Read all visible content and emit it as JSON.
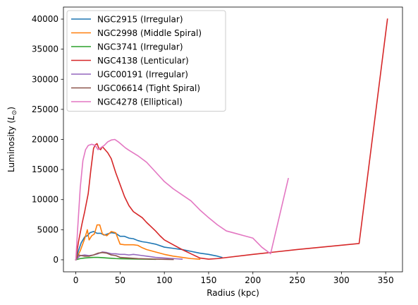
{
  "chart_data": {
    "type": "line",
    "title": "",
    "xlabel": "Radius (kpc)",
    "ylabel_main": "Luminosity (",
    "ylabel_sub": "⊙",
    "ylabel_tail": ")",
    "ylabel_L": "L",
    "xlim": [
      -14,
      369
    ],
    "ylim": [
      -2000,
      42000
    ],
    "xticks": [
      0,
      50,
      100,
      150,
      200,
      250,
      300,
      350
    ],
    "yticks": [
      0,
      5000,
      10000,
      15000,
      20000,
      25000,
      30000,
      35000,
      40000
    ],
    "xtick_labels": [
      "0",
      "50",
      "100",
      "150",
      "200",
      "250",
      "300",
      "350"
    ],
    "ytick_labels": [
      "0",
      "5000",
      "10000",
      "15000",
      "20000",
      "25000",
      "30000",
      "35000",
      "40000"
    ],
    "legend_position": "upper-left",
    "grid": false,
    "series": [
      {
        "name": "NGC2915 (Irregular)",
        "color": "#1f77b4",
        "x": [
          0,
          3,
          6,
          10,
          13,
          16,
          20,
          24,
          28,
          32,
          36,
          40,
          45,
          50,
          55,
          60,
          65,
          70,
          75,
          80,
          90,
          100,
          110,
          120,
          130,
          140,
          150,
          160,
          165
        ],
        "y": [
          0,
          1500,
          2800,
          3800,
          4000,
          4500,
          4700,
          4400,
          4400,
          4100,
          4300,
          4500,
          4400,
          3900,
          3900,
          3600,
          3500,
          3200,
          3000,
          2900,
          2600,
          2100,
          1900,
          1700,
          1400,
          1100,
          900,
          600,
          400
        ]
      },
      {
        "name": "NGC2998 (Middle Spiral)",
        "color": "#ff7f0e",
        "x": [
          0,
          5,
          10,
          13,
          15,
          18,
          21,
          24,
          27,
          30,
          35,
          40,
          45,
          50,
          55,
          60,
          65,
          70,
          75,
          80,
          90,
          100,
          110,
          120,
          130,
          140
        ],
        "y": [
          0,
          1500,
          3500,
          5000,
          3300,
          4000,
          4300,
          5800,
          5800,
          4300,
          4000,
          4700,
          4500,
          2600,
          2500,
          2500,
          2500,
          2400,
          2000,
          1700,
          1300,
          900,
          600,
          400,
          200,
          100
        ]
      },
      {
        "name": "NGC3741 (Irregular)",
        "color": "#2ca02c",
        "x": [
          0,
          5,
          10,
          15,
          20,
          25,
          30,
          35,
          40,
          45,
          50,
          60,
          70,
          80,
          90
        ],
        "y": [
          0,
          200,
          300,
          350,
          400,
          400,
          350,
          300,
          250,
          200,
          180,
          150,
          120,
          100,
          80
        ]
      },
      {
        "name": "NGC4138 (Lenticular)",
        "color": "#d62728",
        "x": [
          0,
          3,
          7,
          10,
          14,
          17,
          20,
          22,
          24,
          26,
          28,
          30,
          33,
          36,
          40,
          45,
          50,
          55,
          60,
          65,
          70,
          75,
          80,
          85,
          90,
          95,
          100,
          110,
          120,
          130,
          140,
          150,
          160,
          200,
          250,
          320,
          352
        ],
        "y": [
          0,
          3000,
          6000,
          8000,
          11000,
          15000,
          18500,
          19100,
          19300,
          18500,
          18300,
          18800,
          18300,
          17800,
          16800,
          14500,
          12500,
          10500,
          9000,
          8000,
          7500,
          7000,
          6200,
          5500,
          4800,
          4000,
          3300,
          2500,
          1700,
          1000,
          300,
          100,
          200,
          900,
          1700,
          2700,
          40000
        ]
      },
      {
        "name": "UGC00191 (Irregular)",
        "color": "#9467bd",
        "x": [
          0,
          5,
          10,
          15,
          20,
          25,
          30,
          35,
          40,
          45,
          50,
          55,
          60,
          65,
          70,
          75,
          80,
          90,
          100,
          110,
          120
        ],
        "y": [
          0,
          700,
          800,
          700,
          800,
          1000,
          1300,
          1200,
          1000,
          1000,
          900,
          900,
          800,
          900,
          800,
          700,
          600,
          400,
          300,
          200,
          100
        ]
      },
      {
        "name": "UGC06614 (Tight Spiral)",
        "color": "#8c564b",
        "x": [
          0,
          3,
          6,
          10,
          15,
          20,
          25,
          30,
          35,
          40,
          45,
          50,
          60,
          70,
          80,
          90,
          100,
          110
        ],
        "y": [
          0,
          800,
          700,
          600,
          600,
          800,
          1100,
          1200,
          1100,
          800,
          700,
          400,
          300,
          200,
          150,
          100,
          80,
          50
        ]
      },
      {
        "name": "NGC4278 (Elliptical)",
        "color": "#e377c2",
        "x": [
          0,
          2,
          5,
          8,
          11,
          14,
          18,
          22,
          25,
          28,
          32,
          36,
          40,
          44,
          48,
          52,
          56,
          60,
          70,
          80,
          90,
          100,
          110,
          120,
          130,
          140,
          150,
          160,
          170,
          180,
          190,
          200,
          210,
          220,
          240
        ],
        "y": [
          0,
          5000,
          12000,
          16500,
          18300,
          19000,
          19200,
          19000,
          18300,
          18600,
          19000,
          19600,
          19900,
          20000,
          19600,
          19100,
          18600,
          18200,
          17300,
          16200,
          14600,
          13000,
          11800,
          10800,
          9800,
          8300,
          7000,
          5800,
          4800,
          4400,
          4000,
          3600,
          2100,
          1000,
          13500
        ]
      }
    ]
  }
}
